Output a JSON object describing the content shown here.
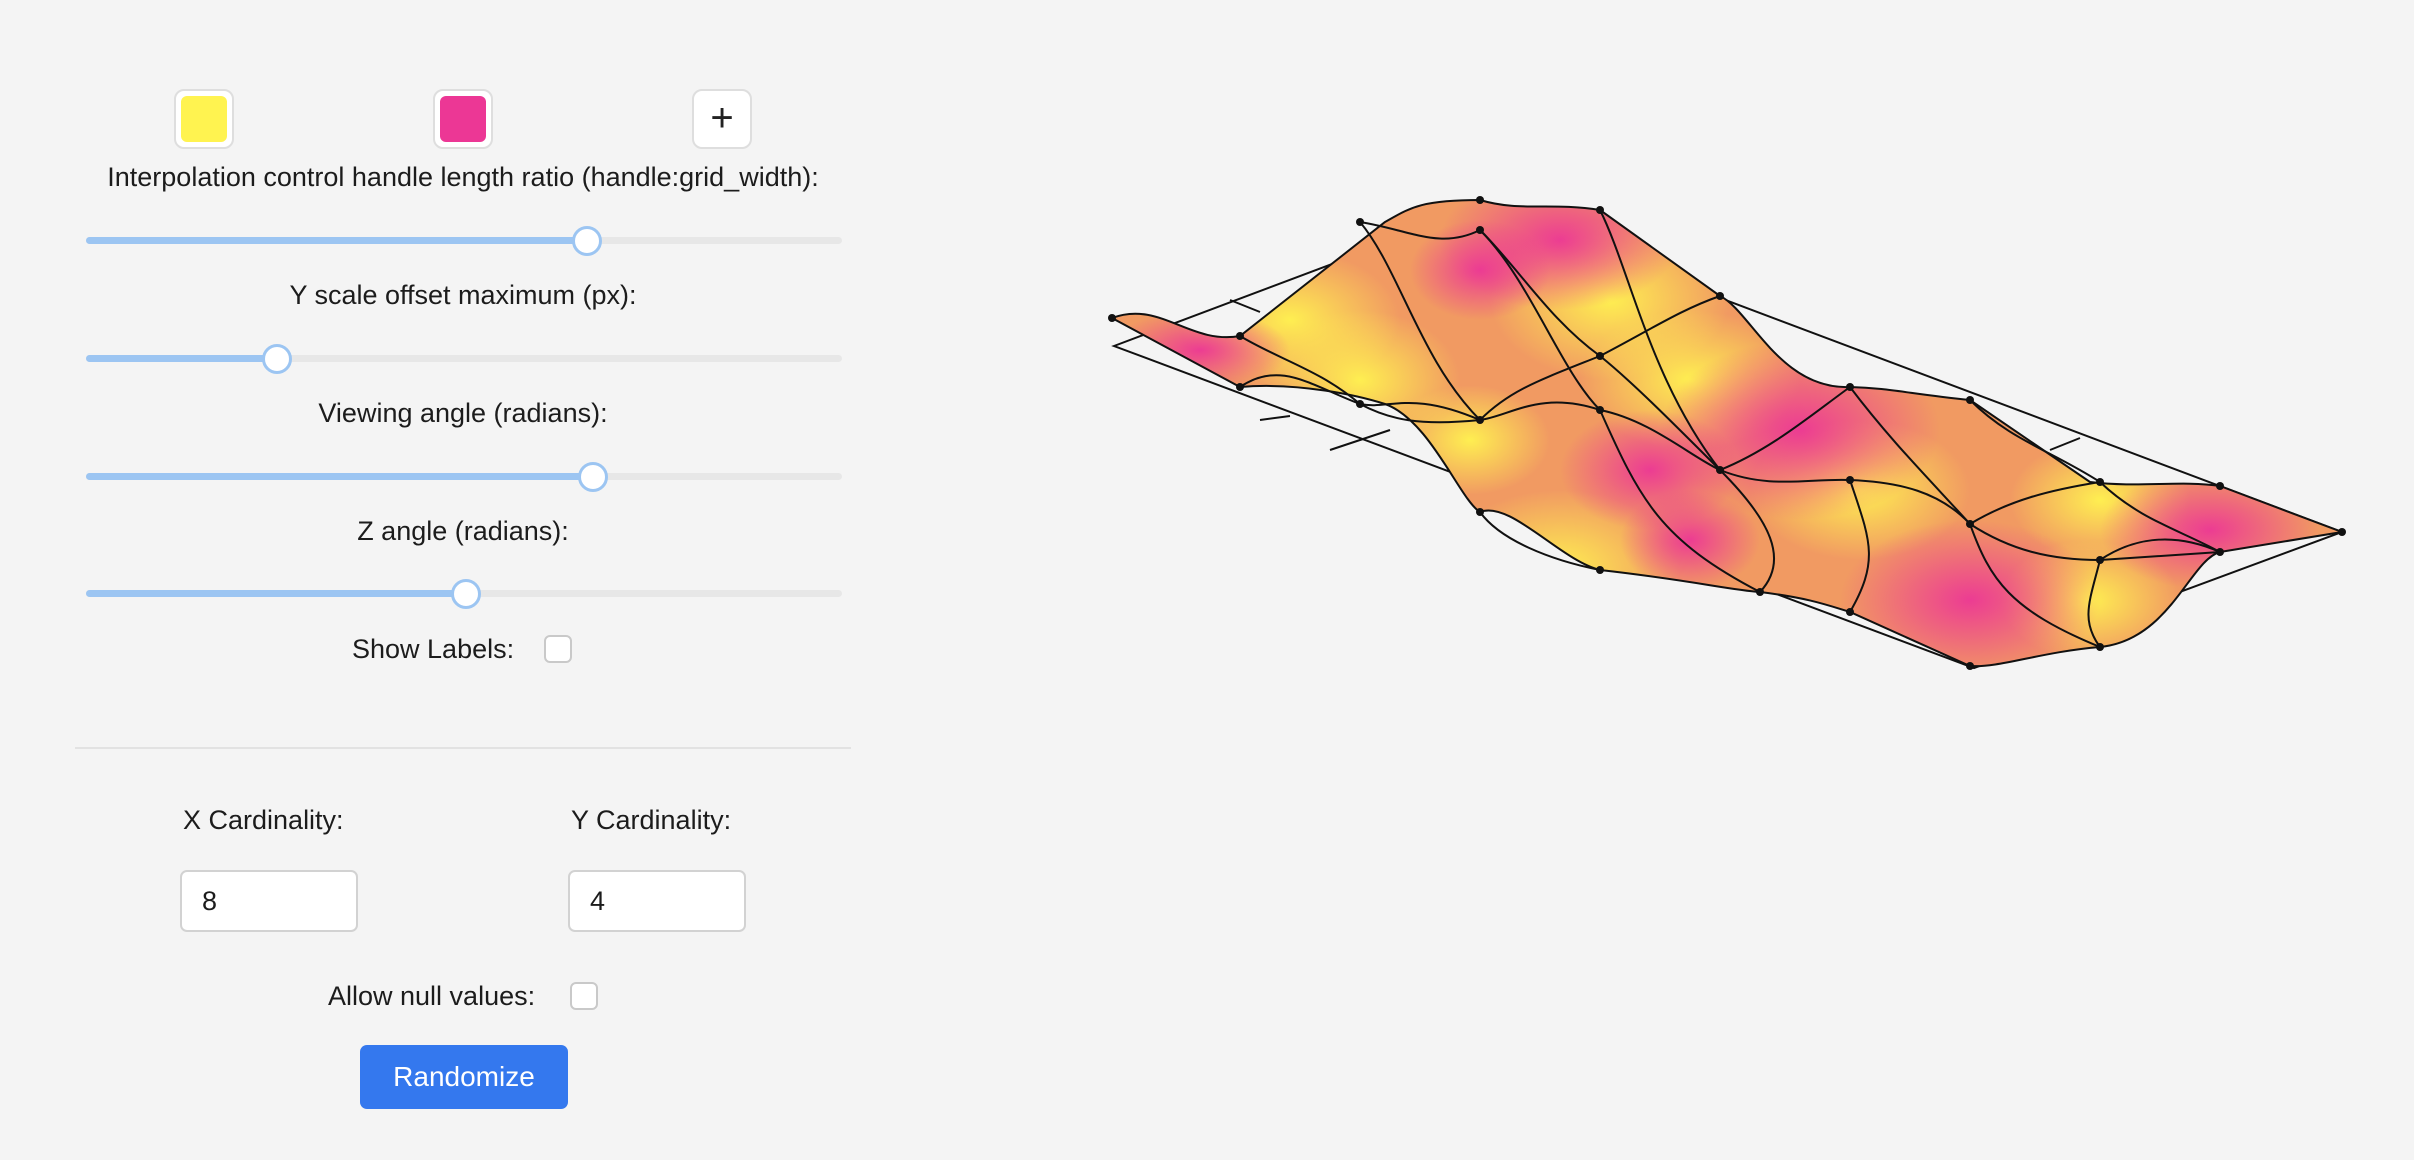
{
  "colors": {
    "stops": [
      "#fff350",
      "#ec3795"
    ],
    "accent": "#3478ee",
    "slider_fill": "#9cc5f2"
  },
  "icons": {
    "add_color": "plus-icon"
  },
  "add_color_glyph": "+",
  "sliders": [
    {
      "label": "Interpolation control handle length ratio (handle:grid_width):",
      "fraction": 0.66
    },
    {
      "label": "Y scale offset maximum (px):",
      "fraction": 0.25
    },
    {
      "label": "Viewing angle (radians):",
      "fraction": 0.668
    },
    {
      "label": "Z angle (radians):",
      "fraction": 0.5
    }
  ],
  "show_labels": {
    "label": "Show Labels:",
    "checked": false
  },
  "x_cardinality": {
    "label": "X Cardinality:",
    "value": "8"
  },
  "y_cardinality": {
    "label": "Y Cardinality:",
    "value": "4"
  },
  "allow_null": {
    "label": "Allow null values:",
    "checked": false
  },
  "randomize_label": "Randomize"
}
